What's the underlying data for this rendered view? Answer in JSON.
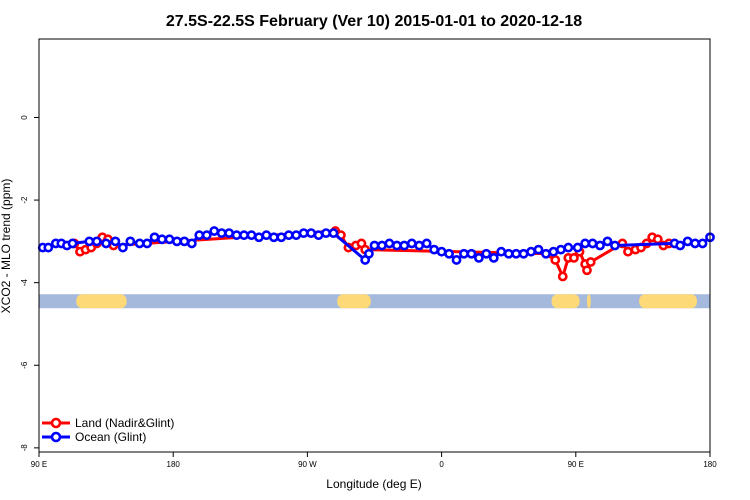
{
  "chart_data": {
    "type": "line",
    "title": "27.5S-22.5S February (Ver 10)   2015-01-01 to 2020-12-18",
    "xlabel": "Longitude (deg E)",
    "ylabel": "XCO2 - MLO trend (ppm)",
    "xlim": [
      90,
      450
    ],
    "ylim": [
      -8.1,
      1.9
    ],
    "x_ticks": [
      90,
      162,
      234,
      306,
      378,
      450
    ],
    "x_tick_labels": [
      "90 E",
      "180",
      "90 W",
      "0",
      "90 E",
      "180"
    ],
    "y_ticks": [
      0,
      -2,
      -4,
      -6,
      -8
    ],
    "y_tick_labels": [
      "0",
      "-2",
      "-4",
      "-6",
      "-8"
    ],
    "legend_position": "bottom-left",
    "series": [
      {
        "name": "Land (Nadir&Glint)",
        "color": "#ff0000",
        "x": [
          109,
          112,
          115,
          118,
          121,
          124,
          127,
          130,
          249,
          252,
          256,
          260,
          263,
          265,
          365,
          367,
          371,
          374,
          377,
          380,
          383,
          384,
          386,
          403,
          406,
          410,
          413,
          416,
          419,
          422,
          425,
          428
        ],
        "y": [
          -3.05,
          -3.25,
          -3.2,
          -3.15,
          -3.05,
          -2.9,
          -2.95,
          -3.1,
          -2.75,
          -2.85,
          -3.15,
          -3.1,
          -3.05,
          -3.2,
          -3.3,
          -3.45,
          -3.85,
          -3.4,
          -3.4,
          -3.25,
          -3.55,
          -3.7,
          -3.5,
          -3.05,
          -3.25,
          -3.2,
          -3.15,
          -3.05,
          -2.9,
          -2.95,
          -3.1,
          -3.05
        ]
      },
      {
        "name": "Ocean (Glint)",
        "color": "#0000ff",
        "x": [
          92,
          95,
          99,
          102,
          105,
          108,
          117,
          121,
          126,
          131,
          135,
          139,
          144,
          148,
          152,
          156,
          160,
          164,
          168,
          172,
          176,
          180,
          184,
          188,
          192,
          196,
          200,
          204,
          208,
          212,
          216,
          220,
          224,
          228,
          232,
          236,
          240,
          244,
          248,
          265,
          267,
          270,
          274,
          278,
          282,
          286,
          290,
          294,
          298,
          302,
          306,
          310,
          314,
          318,
          322,
          326,
          330,
          334,
          338,
          342,
          346,
          350,
          354,
          358,
          362,
          366,
          370,
          374,
          379,
          383,
          387,
          391,
          395,
          399,
          431,
          434,
          438,
          442,
          446,
          450
        ],
        "y": [
          -3.15,
          -3.15,
          -3.05,
          -3.05,
          -3.1,
          -3.05,
          -3.0,
          -3.0,
          -3.05,
          -3.0,
          -3.15,
          -3.0,
          -3.05,
          -3.05,
          -2.9,
          -2.95,
          -2.95,
          -3.0,
          -3.0,
          -3.05,
          -2.85,
          -2.85,
          -2.75,
          -2.8,
          -2.8,
          -2.85,
          -2.85,
          -2.85,
          -2.9,
          -2.85,
          -2.9,
          -2.9,
          -2.85,
          -2.85,
          -2.8,
          -2.8,
          -2.85,
          -2.8,
          -2.8,
          -3.45,
          -3.3,
          -3.1,
          -3.1,
          -3.05,
          -3.1,
          -3.1,
          -3.05,
          -3.1,
          -3.05,
          -3.2,
          -3.25,
          -3.3,
          -3.45,
          -3.3,
          -3.3,
          -3.4,
          -3.3,
          -3.4,
          -3.25,
          -3.3,
          -3.3,
          -3.3,
          -3.25,
          -3.2,
          -3.3,
          -3.25,
          -3.2,
          -3.15,
          -3.15,
          -3.05,
          -3.05,
          -3.1,
          -3.0,
          -3.1,
          -3.05,
          -3.1,
          -3.0,
          -3.05,
          -3.05,
          -2.9
        ]
      }
    ],
    "land_sea_bar": {
      "y_level": -4.45,
      "ocean_color": "#a5b9dc",
      "land_color": "#fdd978",
      "land_segments": [
        [
          110,
          137
        ],
        [
          250,
          268
        ],
        [
          365,
          380
        ],
        [
          384,
          386
        ],
        [
          412,
          443
        ]
      ]
    }
  }
}
